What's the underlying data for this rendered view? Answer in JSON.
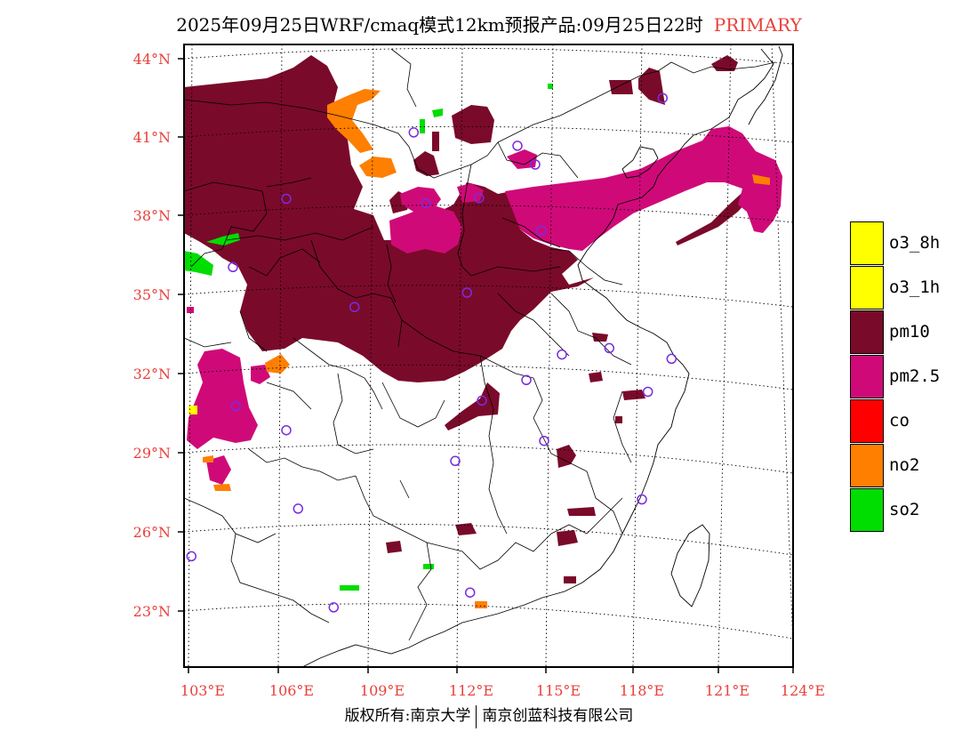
{
  "header": {
    "title": "2025年09月25日WRF/cmaq模式12km预报产品:09月25日22时",
    "product_tag": "PRIMARY"
  },
  "footer": {
    "copyright": "版权所有:南京大学",
    "company": "南京创蓝科技有限公司"
  },
  "map": {
    "lat_labels": [
      "44°N",
      "41°N",
      "38°N",
      "35°N",
      "32°N",
      "29°N",
      "26°N",
      "23°N"
    ],
    "lon_labels": [
      "103°E",
      "106°E",
      "109°E",
      "112°E",
      "115°E",
      "118°E",
      "121°E",
      "124°E"
    ],
    "label_color": "#e8403a",
    "extent": {
      "lon_min": 103,
      "lon_max": 124,
      "lat_min": 21.5,
      "lat_max": 44.5
    }
  },
  "legend": {
    "title": "PRIMARY",
    "items": [
      {
        "label": "o3_8h",
        "color": "#ffff00"
      },
      {
        "label": "o3_1h",
        "color": "#ffff00"
      },
      {
        "label": "pm10",
        "color": "#7a0a2a"
      },
      {
        "label": "pm2.5",
        "color": "#cf0a78"
      },
      {
        "label": "co",
        "color": "#ff0000"
      },
      {
        "label": "no2",
        "color": "#ff7f00"
      },
      {
        "label": "so2",
        "color": "#00dd00"
      }
    ]
  },
  "stations": {
    "color": "#7b2be0",
    "points": [
      {
        "lon": 119.0,
        "lat": 42.3
      },
      {
        "lon": 110.6,
        "lat": 40.8
      },
      {
        "lon": 114.1,
        "lat": 40.3
      },
      {
        "lon": 114.7,
        "lat": 39.6
      },
      {
        "lon": 106.3,
        "lat": 38.4
      },
      {
        "lon": 111.0,
        "lat": 38.1
      },
      {
        "lon": 112.8,
        "lat": 38.3
      },
      {
        "lon": 114.9,
        "lat": 37.1
      },
      {
        "lon": 104.5,
        "lat": 35.9
      },
      {
        "lon": 108.6,
        "lat": 34.2
      },
      {
        "lon": 112.4,
        "lat": 34.7
      },
      {
        "lon": 115.6,
        "lat": 32.4
      },
      {
        "lon": 117.2,
        "lat": 32.7
      },
      {
        "lon": 119.3,
        "lat": 32.4
      },
      {
        "lon": 114.4,
        "lat": 31.4
      },
      {
        "lon": 118.5,
        "lat": 31.1
      },
      {
        "lon": 104.6,
        "lat": 30.6
      },
      {
        "lon": 112.9,
        "lat": 30.6
      },
      {
        "lon": 106.3,
        "lat": 29.6
      },
      {
        "lon": 115.0,
        "lat": 29.1
      },
      {
        "lon": 112.0,
        "lat": 28.3
      },
      {
        "lon": 118.3,
        "lat": 27.0
      },
      {
        "lon": 106.7,
        "lat": 26.6
      },
      {
        "lon": 103.1,
        "lat": 25.0
      },
      {
        "lon": 112.5,
        "lat": 23.3
      },
      {
        "lon": 107.9,
        "lat": 22.8
      }
    ]
  }
}
